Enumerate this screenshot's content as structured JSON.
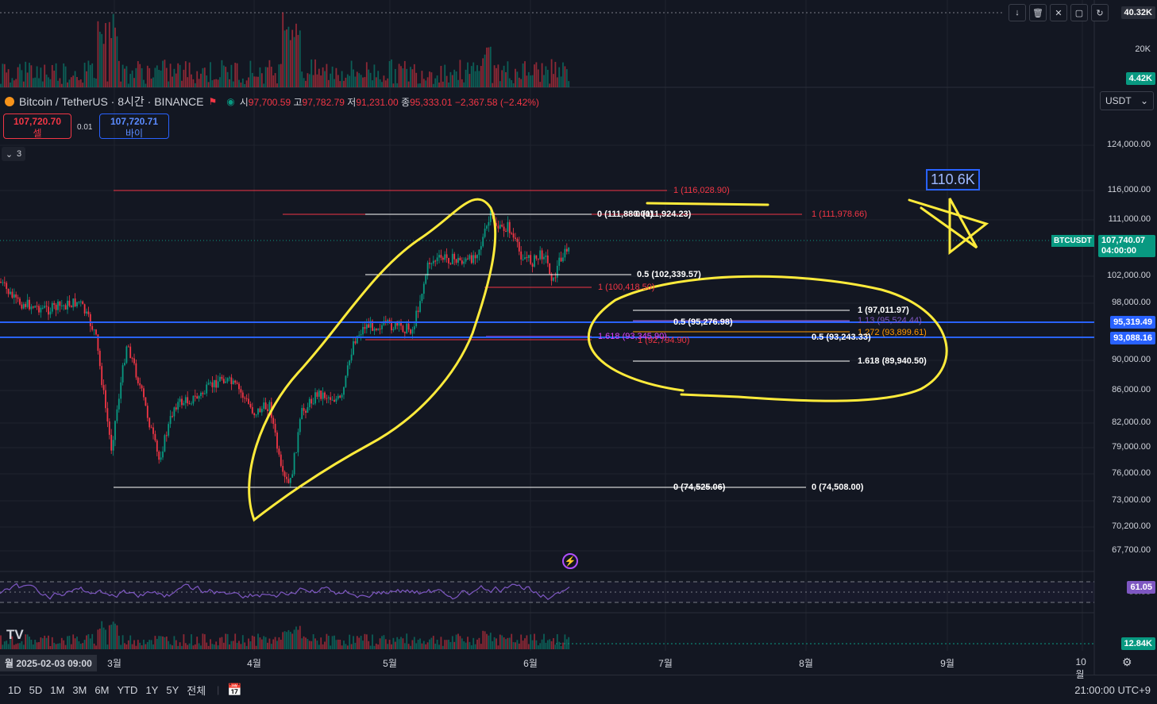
{
  "symbol": {
    "name": "Bitcoin / TetherUS · 8시간 · BINANCE",
    "ohlc": {
      "open_label": "시",
      "open": "97,700.59",
      "high_label": "고",
      "high": "97,782.79",
      "low_label": "저",
      "low": "91,231.00",
      "close_label": "종",
      "close": "95,333.01",
      "change": "−2,367.58 (−2.42%)"
    }
  },
  "trade": {
    "sell_price": "107,720.70",
    "sell_label": "셀",
    "spread": "0.01",
    "buy_price": "107,720.71",
    "buy_label": "바이"
  },
  "indicators_collapse": {
    "count": "3"
  },
  "currency_select": {
    "value": "USDT"
  },
  "top_toolbar": {
    "icons": [
      "arrow-down-icon",
      "trash-icon",
      "x-icon",
      "square-icon",
      "refresh-icon"
    ]
  },
  "volume_pane": {
    "labels": [
      "40.32K",
      "20K"
    ],
    "current": "4.42K"
  },
  "price_axis": {
    "labels": [
      "124,000.00",
      "116,000.00",
      "111,000.00",
      "102,000.00",
      "98,000.00",
      "90,000.00",
      "86,000.00",
      "82,000.00",
      "79,000.00",
      "76,000.00",
      "73,000.00",
      "70,200.00",
      "67,700.00"
    ],
    "symbol_tag": "BTCUSDT",
    "last_price": "107,740.07",
    "countdown": "04:00:00",
    "line1": "95,319.49",
    "line2": "93,088.16"
  },
  "rsi_pane": {
    "value": "61.05",
    "level": "50.00"
  },
  "volume2_pane": {
    "value": "12.84K"
  },
  "time_axis": {
    "date_tag": "월 2025-02-03  09:00",
    "months": [
      "3월",
      "4월",
      "5월",
      "6월",
      "7월",
      "8월",
      "9월",
      "10월"
    ]
  },
  "fib_labels": {
    "f1": "1 (116,028.90)",
    "f2": "0 (111,880.00)",
    "f2b": "0 (111,924.23)",
    "f3": "1 (111,978.66)",
    "f4": "0.5 (102,339.57)",
    "f5": "1 (100,418.50)",
    "f6": "1 (97,011.97)",
    "f7": "0.5 (95,276.98)",
    "f8": "1.13 (95,524.44)",
    "f9": "1.272 (93,899.61)",
    "f10": "1.618 (93,345.90)",
    "f11": "1 (92,794.90)",
    "f12": "0.5 (93,243.33)",
    "f13": "1.618 (89,940.50)",
    "f14": "0 (74,525.06)",
    "f15": "0 (74,508.00)"
  },
  "annotation": {
    "target": "110.6K"
  },
  "bottom_toolbar": {
    "ranges": [
      "1D",
      "5D",
      "1M",
      "3M",
      "6M",
      "YTD",
      "1Y",
      "5Y",
      "전체"
    ],
    "clock": "21:00:00 UTC+9"
  },
  "colors": {
    "up": "#089981",
    "down": "#f23645",
    "highlight": "#ffeb3b",
    "blue_line": "#2962ff",
    "rsi": "#7e57c2"
  }
}
